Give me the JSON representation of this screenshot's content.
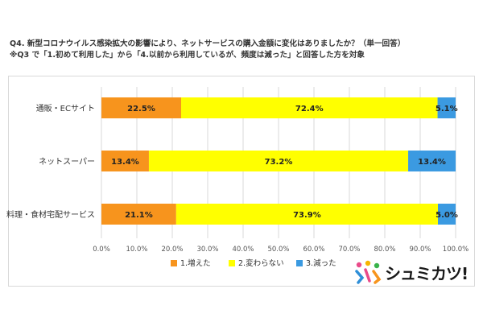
{
  "header": {
    "question": "Q4. 新型コロナウイルス感染拡大の影響により、ネットサービスの購入金額に変化はありましたか？（単一回答）",
    "note": "※Q3 で「1.初めて利用した」から「4.以前から利用しているが、頻度は減った」と回答した方を対象"
  },
  "chart_data": {
    "type": "bar",
    "orientation": "horizontal",
    "stacked": "percent",
    "categories": [
      "通販・ECサイト",
      "ネットスーパー",
      "料理・食材宅配サービス"
    ],
    "series": [
      {
        "name": "1.増えた",
        "color": "#f7941d",
        "values": [
          22.5,
          13.4,
          21.1
        ],
        "labels": [
          "22.5%",
          "13.4%",
          "21.1%"
        ]
      },
      {
        "name": "2.変わらない",
        "color": "#ffff00",
        "values": [
          72.4,
          73.2,
          73.9
        ],
        "labels": [
          "72.4%",
          "73.2%",
          "73.9%"
        ]
      },
      {
        "name": "3.減った",
        "color": "#3b9ae1",
        "values": [
          5.1,
          13.4,
          5.0
        ],
        "labels": [
          "5.1%",
          "13.4%",
          "5.0%"
        ]
      }
    ],
    "xlim": [
      0,
      100
    ],
    "xticks": [
      "0.0%",
      "10.0%",
      "20.0%",
      "30.0%",
      "40.0%",
      "50.0%",
      "60.0%",
      "70.0%",
      "80.0%",
      "90.0%",
      "100.0%"
    ],
    "grid": true,
    "legend_position": "bottom"
  },
  "logo": {
    "text": "シュミカツ!"
  }
}
